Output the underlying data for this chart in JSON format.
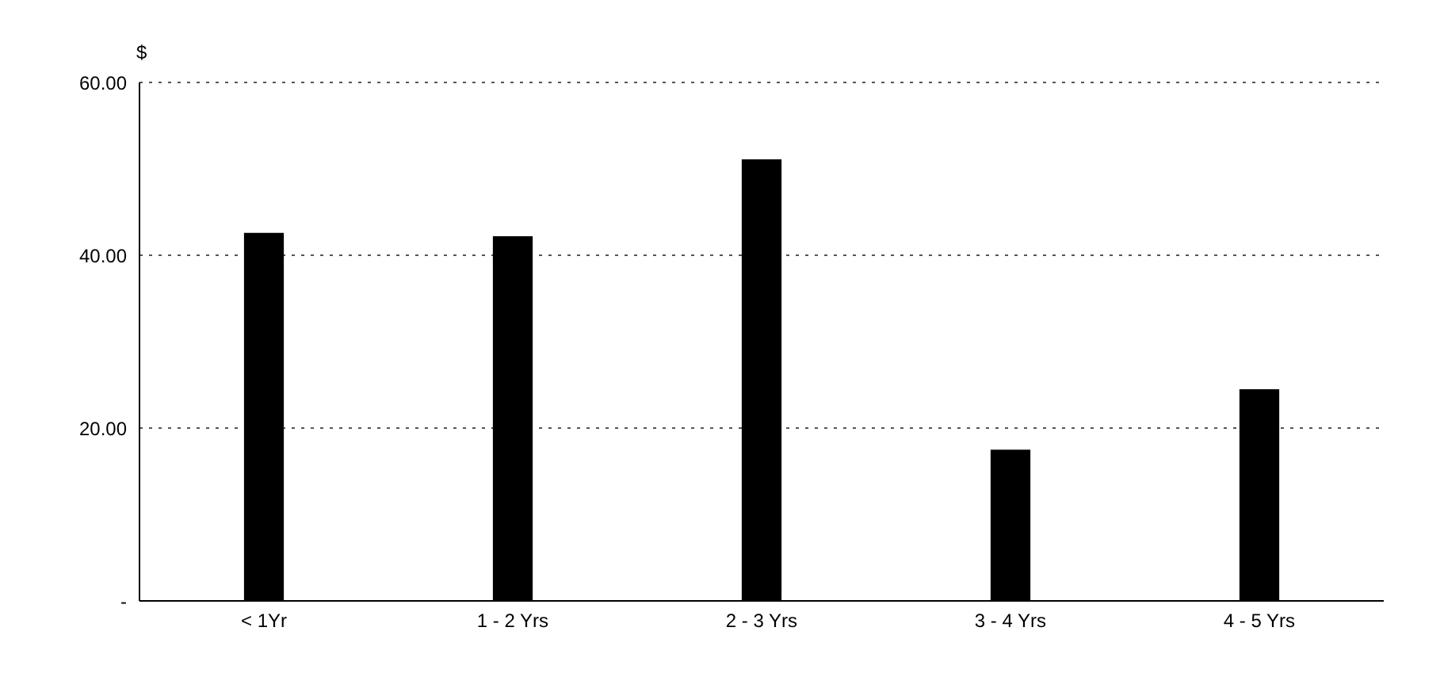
{
  "chart_data": {
    "type": "bar",
    "ylabel": "$",
    "categories": [
      "< 1Yr",
      "1 - 2 Yrs",
      "2 - 3 Yrs",
      "3 - 4 Yrs",
      "4 - 5 Yrs"
    ],
    "values": [
      42.6,
      42.2,
      51.1,
      17.5,
      24.5
    ],
    "color": "#000000",
    "ylim": [
      0,
      60
    ],
    "yticks": [
      {
        "value": 0,
        "label": "-"
      },
      {
        "value": 20,
        "label": "20.00"
      },
      {
        "value": 40,
        "label": "40.00"
      },
      {
        "value": 60,
        "label": "60.00"
      }
    ],
    "grid": "y",
    "legend": false
  }
}
